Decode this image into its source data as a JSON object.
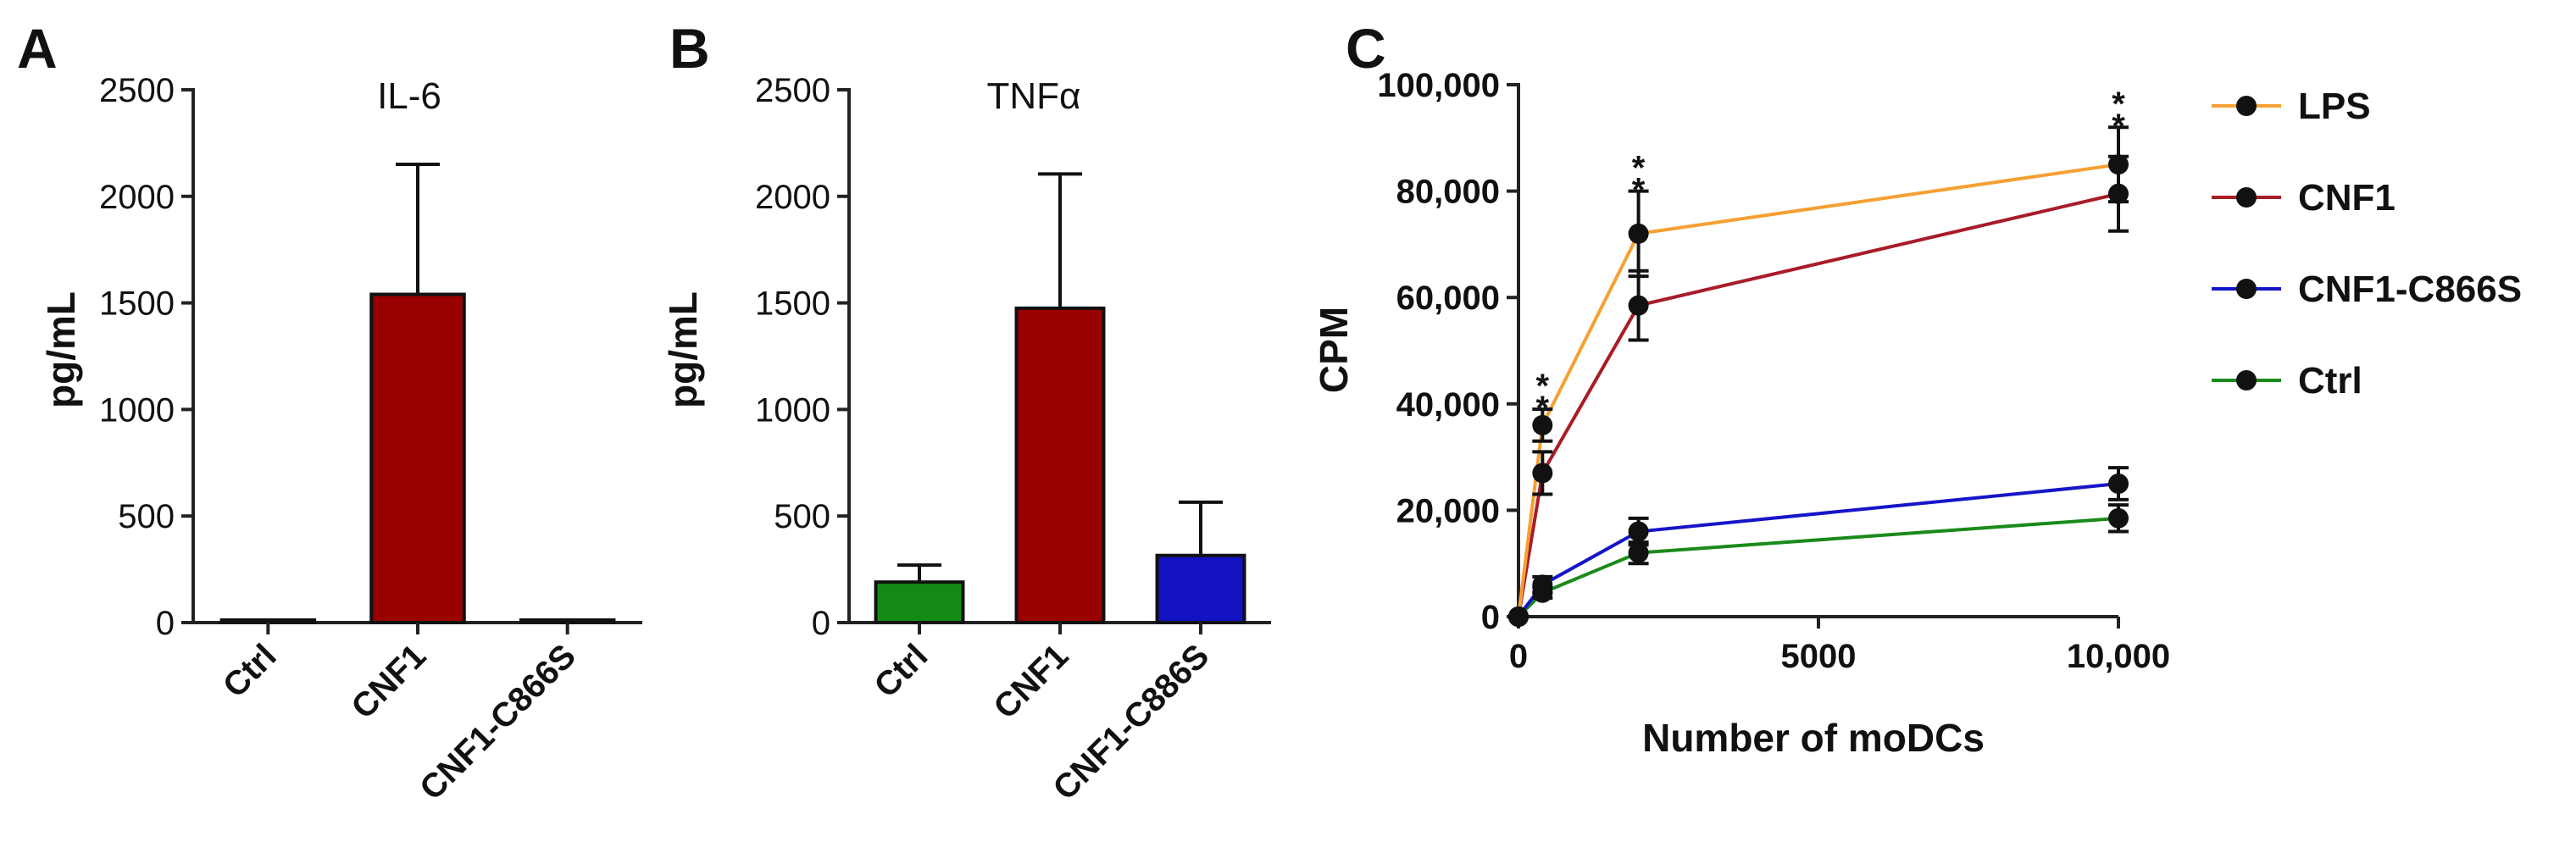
{
  "chart_data": [
    {
      "panel": "A",
      "type": "bar",
      "title": "IL-6",
      "ylabel": "pg/mL",
      "xlabel": "",
      "ylim": [
        0,
        2500
      ],
      "yticks": [
        0,
        500,
        1000,
        1500,
        2000,
        2500
      ],
      "ytick_labels": [
        "0",
        "500",
        "1000",
        "1500",
        "2000",
        "2500"
      ],
      "categories": [
        "Ctrl",
        "CNF1",
        "CNF1-C866S"
      ],
      "values": [
        10,
        1540,
        5
      ],
      "errors": [
        0,
        610,
        0
      ],
      "colors": [
        "#138a13",
        "#990000",
        "#1212c0"
      ]
    },
    {
      "panel": "B",
      "type": "bar",
      "title": "TNFα",
      "ylabel": "pg/mL",
      "xlabel": "",
      "ylim": [
        0,
        2500
      ],
      "yticks": [
        0,
        500,
        1000,
        1500,
        2000,
        2500
      ],
      "ytick_labels": [
        "0",
        "500",
        "1000",
        "1500",
        "2000",
        "2500"
      ],
      "categories": [
        "Ctrl",
        "CNF1",
        "CNF1-C886S"
      ],
      "values": [
        190,
        1475,
        315
      ],
      "errors": [
        80,
        630,
        250
      ],
      "colors": [
        "#138a13",
        "#990000",
        "#1212c0"
      ]
    },
    {
      "panel": "C",
      "type": "line",
      "title": "",
      "ylabel": "CPM",
      "xlabel": "Number of moDCs",
      "xlim": [
        0,
        10000
      ],
      "ylim": [
        0,
        100000
      ],
      "xticks": [
        0,
        5000,
        10000
      ],
      "xtick_labels": [
        "0",
        "5000",
        "10,000"
      ],
      "yticks": [
        0,
        20000,
        40000,
        60000,
        80000,
        100000
      ],
      "ytick_labels": [
        "0",
        "20,000",
        "40,000",
        "60,000",
        "80,000",
        "100,000"
      ],
      "x": [
        0,
        400,
        2000,
        10000
      ],
      "series": [
        {
          "name": "LPS",
          "color": "#f5a033",
          "values": [
            0,
            36000,
            72000,
            85000
          ],
          "errors": [
            0,
            3000,
            8000,
            7000
          ]
        },
        {
          "name": "CNF1",
          "color": "#a81c28",
          "values": [
            0,
            27000,
            58500,
            79500
          ],
          "errors": [
            0,
            4000,
            6500,
            7000
          ]
        },
        {
          "name": "CNF1-C866S",
          "color": "#1515c8",
          "values": [
            0,
            6000,
            16000,
            25000
          ],
          "errors": [
            0,
            1500,
            2500,
            3000
          ]
        },
        {
          "name": "Ctrl",
          "color": "#1a8a1a",
          "values": [
            0,
            4500,
            12000,
            18500
          ],
          "errors": [
            0,
            1000,
            2000,
            2500
          ]
        }
      ],
      "annotations": [
        {
          "text": "*",
          "x": 400,
          "color": "#f5a033",
          "series": "LPS"
        },
        {
          "text": "*",
          "x": 400,
          "color": "#a81c28",
          "series": "CNF1"
        },
        {
          "text": "*",
          "x": 2000,
          "color": "#f5a033",
          "series": "LPS"
        },
        {
          "text": "*",
          "x": 2000,
          "color": "#a81c28",
          "series": "CNF1"
        },
        {
          "text": "*",
          "x": 10000,
          "color": "#f5a033",
          "series": "LPS"
        },
        {
          "text": "*",
          "x": 10000,
          "color": "#a81c28",
          "series": "CNF1"
        }
      ],
      "legend_position": "right"
    }
  ]
}
